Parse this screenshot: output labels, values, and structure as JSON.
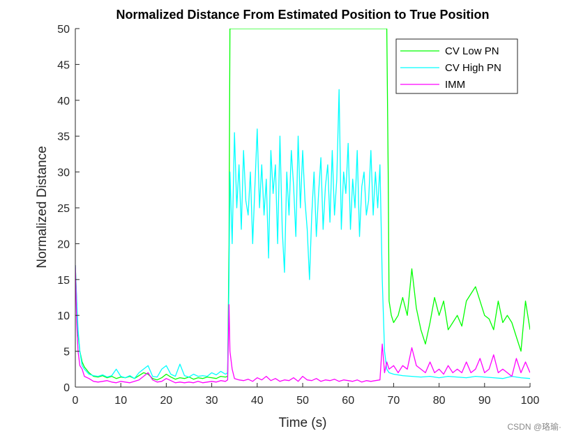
{
  "chart_data": {
    "type": "line",
    "title": "Normalized Distance From Estimated Position to True Position",
    "xlabel": "Time (s)",
    "ylabel": "Normalized Distance",
    "xlim": [
      0,
      100
    ],
    "ylim": [
      0,
      50
    ],
    "xticks": [
      0,
      10,
      20,
      30,
      40,
      50,
      60,
      70,
      80,
      90,
      100
    ],
    "yticks": [
      0,
      5,
      10,
      15,
      20,
      25,
      30,
      35,
      40,
      45,
      50
    ],
    "grid": false,
    "legend_position": "top-right",
    "series": [
      {
        "name": "CV Low PN",
        "color": "#00ff00",
        "points": [
          [
            0,
            17
          ],
          [
            0.5,
            8
          ],
          [
            1,
            5
          ],
          [
            1.5,
            3.5
          ],
          [
            2,
            2.8
          ],
          [
            3,
            2
          ],
          [
            4,
            1.5
          ],
          [
            5,
            1.4
          ],
          [
            6,
            1.6
          ],
          [
            7,
            1.3
          ],
          [
            8,
            1.5
          ],
          [
            9,
            1.2
          ],
          [
            10,
            1.4
          ],
          [
            11,
            1.3
          ],
          [
            12,
            1.5
          ],
          [
            13,
            1.2
          ],
          [
            14,
            1.6
          ],
          [
            15,
            2.0
          ],
          [
            16,
            1.8
          ],
          [
            17,
            1.2
          ],
          [
            18,
            1.0
          ],
          [
            19,
            1.3
          ],
          [
            20,
            1.8
          ],
          [
            21,
            1.4
          ],
          [
            22,
            1.1
          ],
          [
            23,
            1.3
          ],
          [
            24,
            1.2
          ],
          [
            25,
            1.4
          ],
          [
            26,
            1.1
          ],
          [
            27,
            1.3
          ],
          [
            28,
            1.2
          ],
          [
            29,
            1.4
          ],
          [
            30,
            1.3
          ],
          [
            31,
            1.2
          ],
          [
            32,
            1.5
          ],
          [
            33,
            1.4
          ],
          [
            33.5,
            1.5
          ],
          [
            33.8,
            20
          ],
          [
            34,
            50
          ],
          [
            34.2,
            50
          ],
          [
            68.5,
            50
          ],
          [
            68.8,
            30
          ],
          [
            69,
            12
          ],
          [
            69.5,
            10
          ],
          [
            70,
            9
          ],
          [
            71,
            10
          ],
          [
            72,
            12.5
          ],
          [
            73,
            10
          ],
          [
            74,
            16.5
          ],
          [
            75,
            11
          ],
          [
            76,
            8
          ],
          [
            77,
            6
          ],
          [
            78,
            9
          ],
          [
            79,
            12.5
          ],
          [
            80,
            10
          ],
          [
            81,
            12
          ],
          [
            82,
            8
          ],
          [
            83,
            9
          ],
          [
            84,
            10
          ],
          [
            85,
            8.5
          ],
          [
            86,
            12
          ],
          [
            87,
            13
          ],
          [
            88,
            14
          ],
          [
            89,
            12
          ],
          [
            90,
            10
          ],
          [
            91,
            9.5
          ],
          [
            92,
            8
          ],
          [
            93,
            12
          ],
          [
            94,
            9
          ],
          [
            95,
            10
          ],
          [
            96,
            9
          ],
          [
            97,
            7
          ],
          [
            98,
            5
          ],
          [
            99,
            12
          ],
          [
            100,
            8
          ]
        ]
      },
      {
        "name": "CV High PN",
        "color": "#00ffff",
        "points": [
          [
            0,
            17
          ],
          [
            0.3,
            12
          ],
          [
            0.6,
            8
          ],
          [
            1,
            5
          ],
          [
            1.5,
            3
          ],
          [
            2,
            2.5
          ],
          [
            3,
            1.8
          ],
          [
            4,
            1.6
          ],
          [
            5,
            1.5
          ],
          [
            6,
            1.7
          ],
          [
            7,
            1.4
          ],
          [
            8,
            1.6
          ],
          [
            9,
            2.5
          ],
          [
            10,
            1.5
          ],
          [
            11,
            1.3
          ],
          [
            12,
            1.6
          ],
          [
            13,
            1.2
          ],
          [
            14,
            2.0
          ],
          [
            15,
            2.5
          ],
          [
            16,
            3.0
          ],
          [
            17,
            1.5
          ],
          [
            18,
            1.4
          ],
          [
            19,
            2.5
          ],
          [
            20,
            3.0
          ],
          [
            21,
            1.8
          ],
          [
            22,
            1.5
          ],
          [
            23,
            3.2
          ],
          [
            24,
            1.6
          ],
          [
            25,
            1.4
          ],
          [
            26,
            1.8
          ],
          [
            27,
            1.5
          ],
          [
            28,
            1.6
          ],
          [
            29,
            1.5
          ],
          [
            30,
            2.0
          ],
          [
            31,
            1.7
          ],
          [
            32,
            2.2
          ],
          [
            33,
            1.8
          ],
          [
            33.5,
            2.0
          ],
          [
            33.8,
            15
          ],
          [
            34,
            30
          ],
          [
            34.5,
            20
          ],
          [
            35,
            35.5
          ],
          [
            35.5,
            25
          ],
          [
            36,
            31
          ],
          [
            36.5,
            22
          ],
          [
            37,
            33
          ],
          [
            37.5,
            26
          ],
          [
            38,
            24
          ],
          [
            38.5,
            30
          ],
          [
            39,
            20
          ],
          [
            39.5,
            28
          ],
          [
            40,
            36
          ],
          [
            40.5,
            25
          ],
          [
            41,
            31
          ],
          [
            41.5,
            24
          ],
          [
            42,
            29
          ],
          [
            42.5,
            18
          ],
          [
            43,
            33
          ],
          [
            43.5,
            27
          ],
          [
            44,
            31
          ],
          [
            44.5,
            20
          ],
          [
            45,
            35
          ],
          [
            45.5,
            22
          ],
          [
            46,
            16
          ],
          [
            46.5,
            30
          ],
          [
            47,
            24
          ],
          [
            47.5,
            33
          ],
          [
            48,
            28
          ],
          [
            48.5,
            21
          ],
          [
            49,
            35
          ],
          [
            49.5,
            25
          ],
          [
            50,
            33
          ],
          [
            50.5,
            26
          ],
          [
            51,
            22
          ],
          [
            51.5,
            15
          ],
          [
            52,
            24
          ],
          [
            52.5,
            30
          ],
          [
            53,
            21
          ],
          [
            53.5,
            27
          ],
          [
            54,
            32
          ],
          [
            54.5,
            22
          ],
          [
            55,
            28
          ],
          [
            55.5,
            31
          ],
          [
            56,
            23
          ],
          [
            56.5,
            33
          ],
          [
            57,
            24
          ],
          [
            57.5,
            29
          ],
          [
            58,
            41.5
          ],
          [
            58.5,
            22
          ],
          [
            59,
            30
          ],
          [
            59.5,
            27
          ],
          [
            60,
            34
          ],
          [
            60.5,
            22
          ],
          [
            61,
            29
          ],
          [
            61.5,
            25
          ],
          [
            62,
            33
          ],
          [
            62.5,
            21
          ],
          [
            63,
            28
          ],
          [
            63.5,
            30
          ],
          [
            64,
            24
          ],
          [
            64.5,
            26
          ],
          [
            65,
            33
          ],
          [
            65.5,
            24
          ],
          [
            66,
            30
          ],
          [
            66.5,
            25
          ],
          [
            67,
            31
          ],
          [
            67.5,
            15
          ],
          [
            68,
            5
          ],
          [
            68.5,
            2.5
          ],
          [
            69,
            2
          ],
          [
            70,
            1.8
          ],
          [
            72,
            1.6
          ],
          [
            74,
            1.5
          ],
          [
            76,
            1.4
          ],
          [
            78,
            1.5
          ],
          [
            80,
            1.3
          ],
          [
            82,
            1.5
          ],
          [
            84,
            1.4
          ],
          [
            86,
            1.3
          ],
          [
            88,
            1.5
          ],
          [
            90,
            1.4
          ],
          [
            92,
            1.3
          ],
          [
            94,
            1.2
          ],
          [
            96,
            1.5
          ],
          [
            98,
            1.3
          ],
          [
            100,
            1.2
          ]
        ]
      },
      {
        "name": "IMM",
        "color": "#ff00ff",
        "points": [
          [
            0,
            17
          ],
          [
            0.3,
            9
          ],
          [
            0.6,
            5
          ],
          [
            1,
            3
          ],
          [
            1.5,
            2.5
          ],
          [
            2,
            1.5
          ],
          [
            3,
            1.2
          ],
          [
            4,
            0.8
          ],
          [
            5,
            0.7
          ],
          [
            6,
            0.8
          ],
          [
            7,
            0.9
          ],
          [
            8,
            0.7
          ],
          [
            9,
            0.6
          ],
          [
            10,
            0.8
          ],
          [
            11,
            0.7
          ],
          [
            12,
            0.6
          ],
          [
            13,
            0.8
          ],
          [
            14,
            1.0
          ],
          [
            15,
            1.5
          ],
          [
            16,
            2.0
          ],
          [
            17,
            1.0
          ],
          [
            18,
            0.7
          ],
          [
            19,
            0.8
          ],
          [
            20,
            1.2
          ],
          [
            21,
            0.9
          ],
          [
            22,
            0.6
          ],
          [
            23,
            0.7
          ],
          [
            24,
            0.6
          ],
          [
            25,
            0.7
          ],
          [
            26,
            0.6
          ],
          [
            27,
            0.8
          ],
          [
            28,
            0.6
          ],
          [
            29,
            0.7
          ],
          [
            30,
            0.8
          ],
          [
            31,
            0.7
          ],
          [
            32,
            0.9
          ],
          [
            33,
            0.8
          ],
          [
            33.5,
            1.0
          ],
          [
            33.8,
            11.5
          ],
          [
            34,
            5
          ],
          [
            34.5,
            2.5
          ],
          [
            35,
            1.2
          ],
          [
            36,
            1.0
          ],
          [
            37,
            0.9
          ],
          [
            38,
            1.1
          ],
          [
            39,
            0.8
          ],
          [
            40,
            1.3
          ],
          [
            41,
            1.0
          ],
          [
            42,
            1.5
          ],
          [
            43,
            0.9
          ],
          [
            44,
            1.2
          ],
          [
            45,
            0.8
          ],
          [
            46,
            1.0
          ],
          [
            47,
            0.9
          ],
          [
            48,
            1.3
          ],
          [
            49,
            0.8
          ],
          [
            50,
            1.5
          ],
          [
            51,
            1.0
          ],
          [
            52,
            0.9
          ],
          [
            53,
            1.2
          ],
          [
            54,
            0.8
          ],
          [
            55,
            1.0
          ],
          [
            56,
            0.9
          ],
          [
            57,
            1.1
          ],
          [
            58,
            0.8
          ],
          [
            59,
            1.0
          ],
          [
            60,
            0.9
          ],
          [
            61,
            0.8
          ],
          [
            62,
            1.0
          ],
          [
            63,
            0.7
          ],
          [
            64,
            0.9
          ],
          [
            65,
            0.8
          ],
          [
            66,
            0.9
          ],
          [
            67,
            1.0
          ],
          [
            67.5,
            6
          ],
          [
            68,
            2
          ],
          [
            68.5,
            3.5
          ],
          [
            69,
            2.5
          ],
          [
            70,
            3
          ],
          [
            71,
            2
          ],
          [
            72,
            3
          ],
          [
            73,
            2.5
          ],
          [
            74,
            5.5
          ],
          [
            75,
            3
          ],
          [
            76,
            2.5
          ],
          [
            77,
            2.0
          ],
          [
            78,
            3.5
          ],
          [
            79,
            2
          ],
          [
            80,
            2.5
          ],
          [
            81,
            1.8
          ],
          [
            82,
            3
          ],
          [
            83,
            2
          ],
          [
            84,
            2.5
          ],
          [
            85,
            2
          ],
          [
            86,
            3.5
          ],
          [
            87,
            2
          ],
          [
            88,
            2.5
          ],
          [
            89,
            4
          ],
          [
            90,
            2
          ],
          [
            91,
            2.5
          ],
          [
            92,
            4.5
          ],
          [
            93,
            2
          ],
          [
            94,
            2.5
          ],
          [
            95,
            2
          ],
          [
            96,
            1.5
          ],
          [
            97,
            4
          ],
          [
            98,
            2
          ],
          [
            99,
            3.5
          ],
          [
            100,
            2
          ]
        ]
      }
    ]
  },
  "watermark": "CSDN @珞瑜·"
}
